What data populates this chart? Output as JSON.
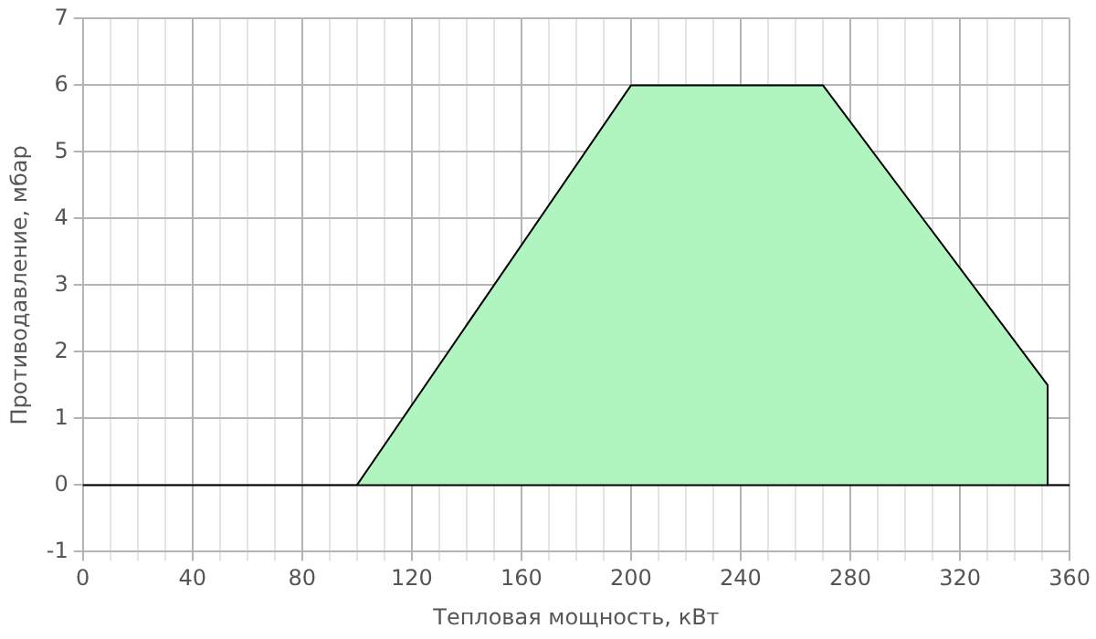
{
  "chart_data": {
    "type": "area",
    "xlabel": "Тепловая мощность, кВт",
    "ylabel": "Противодавление, мбар",
    "series": [
      {
        "x": [
          100,
          200,
          270,
          352,
          352
        ],
        "values": [
          0,
          6,
          6,
          1.5,
          0
        ],
        "color": "#b0f4c0"
      }
    ],
    "xlim": [
      0,
      360
    ],
    "xticks": [
      0,
      {
        "value": 10,
        "label": null
      },
      {
        "value": 20,
        "label": null
      },
      {
        "value": 30,
        "label": null
      },
      40,
      {
        "value": 50,
        "label": null
      },
      {
        "value": 60,
        "label": null
      },
      {
        "value": 70,
        "label": null
      },
      80,
      {
        "value": 90,
        "label": null
      },
      {
        "value": 100,
        "label": null
      },
      {
        "value": 110,
        "label": null
      },
      120,
      {
        "value": 130,
        "label": null
      },
      {
        "value": 140,
        "label": null
      },
      {
        "value": 150,
        "label": null
      },
      160,
      {
        "value": 170,
        "label": null
      },
      {
        "value": 180,
        "label": null
      },
      {
        "value": 190,
        "label": null
      },
      200,
      {
        "value": 210,
        "label": null
      },
      {
        "value": 220,
        "label": null
      },
      {
        "value": 230,
        "label": null
      },
      240,
      {
        "value": 250,
        "label": null
      },
      {
        "value": 260,
        "label": null
      },
      {
        "value": 270,
        "label": null
      },
      280,
      {
        "value": 290,
        "label": null
      },
      {
        "value": 300,
        "label": null
      },
      {
        "value": 310,
        "label": null
      },
      320,
      {
        "value": 330,
        "label": null
      },
      {
        "value": 340,
        "label": null
      },
      {
        "value": 350,
        "label": null
      },
      360
    ],
    "ylim": [
      -1,
      7
    ],
    "yticks": [
      -1,
      0,
      1,
      2,
      3,
      4,
      5,
      6,
      7
    ],
    "ref_lines": [
      {
        "axis": "y",
        "value": 0,
        "color": "#000000"
      }
    ],
    "grid": true,
    "legend": false,
    "marker": "none"
  }
}
